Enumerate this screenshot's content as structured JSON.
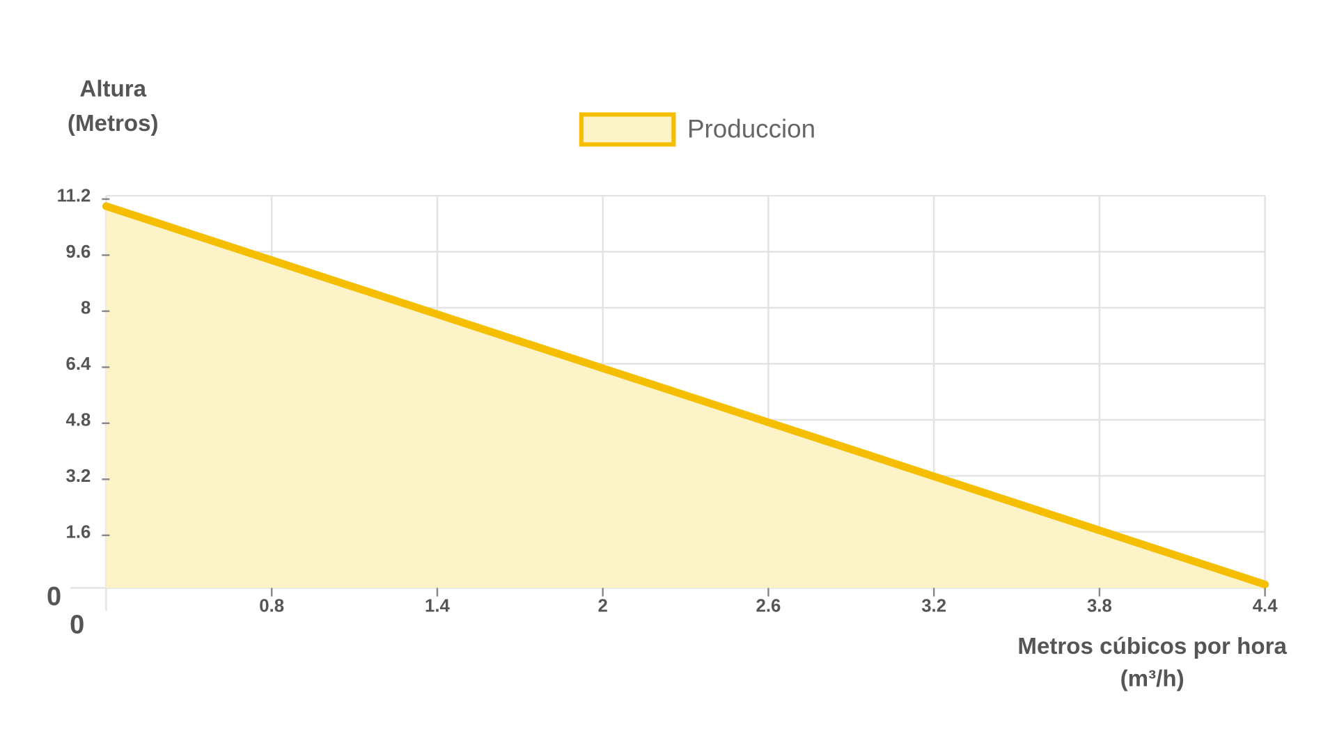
{
  "chart_data": {
    "type": "area",
    "title": "",
    "ylabel": [
      "Altura",
      "(Metros)"
    ],
    "xlabel": [
      "Metros cúbicos por hora",
      "(m³/h)"
    ],
    "x_origin_label": "0",
    "y_origin_label": "0",
    "x_ticks": [
      "0.8",
      "1.4",
      "2",
      "2.6",
      "3.2",
      "3.8",
      "4.4"
    ],
    "y_ticks": [
      "1.6",
      "3.2",
      "4.8",
      "6.4",
      "8",
      "9.6",
      "11.2"
    ],
    "ylim": [
      0,
      11.2
    ],
    "xlim": [
      0,
      4.4
    ],
    "grid": true,
    "legend_position": "top-center",
    "series": [
      {
        "name": "Produccion",
        "color": "#F5BE00",
        "fill": "#FDF3C8",
        "points": [
          {
            "x": 0,
            "y": 10.9
          },
          {
            "x": 4.4,
            "y": 0.1
          }
        ]
      }
    ]
  }
}
